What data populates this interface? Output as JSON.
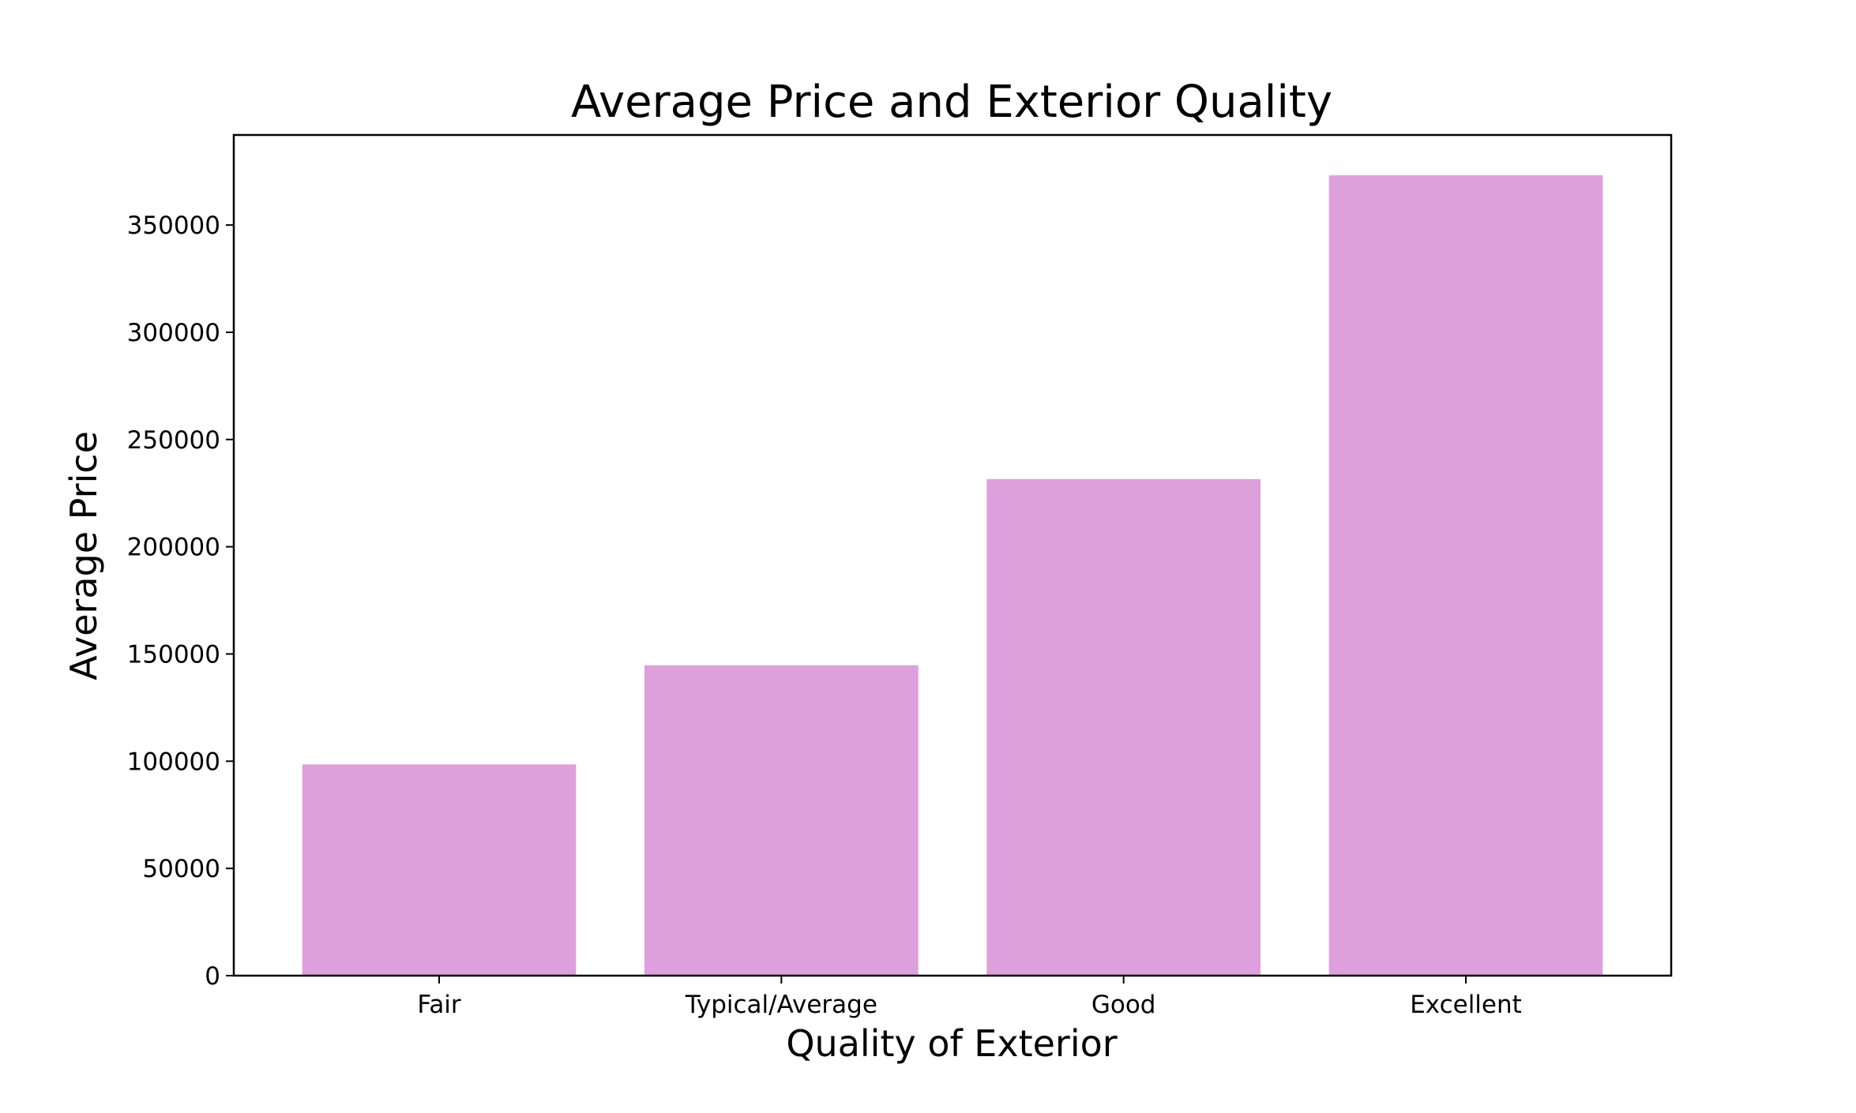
{
  "chart_data": {
    "type": "bar",
    "title": "Average Price and Exterior Quality",
    "xlabel": "Quality of Exterior",
    "ylabel": "Average Price",
    "categories": [
      "Fair",
      "Typical/Average",
      "Good",
      "Excellent"
    ],
    "values": [
      98500,
      144700,
      231500,
      373200
    ],
    "ylim": [
      0,
      392000
    ],
    "yticks": [
      0,
      50000,
      100000,
      150000,
      200000,
      250000,
      300000,
      350000
    ],
    "ytick_labels": [
      "0",
      "50000",
      "100000",
      "150000",
      "200000",
      "250000",
      "300000",
      "350000"
    ],
    "bar_color": "#dda0dd",
    "grid": false,
    "legend": "none"
  }
}
